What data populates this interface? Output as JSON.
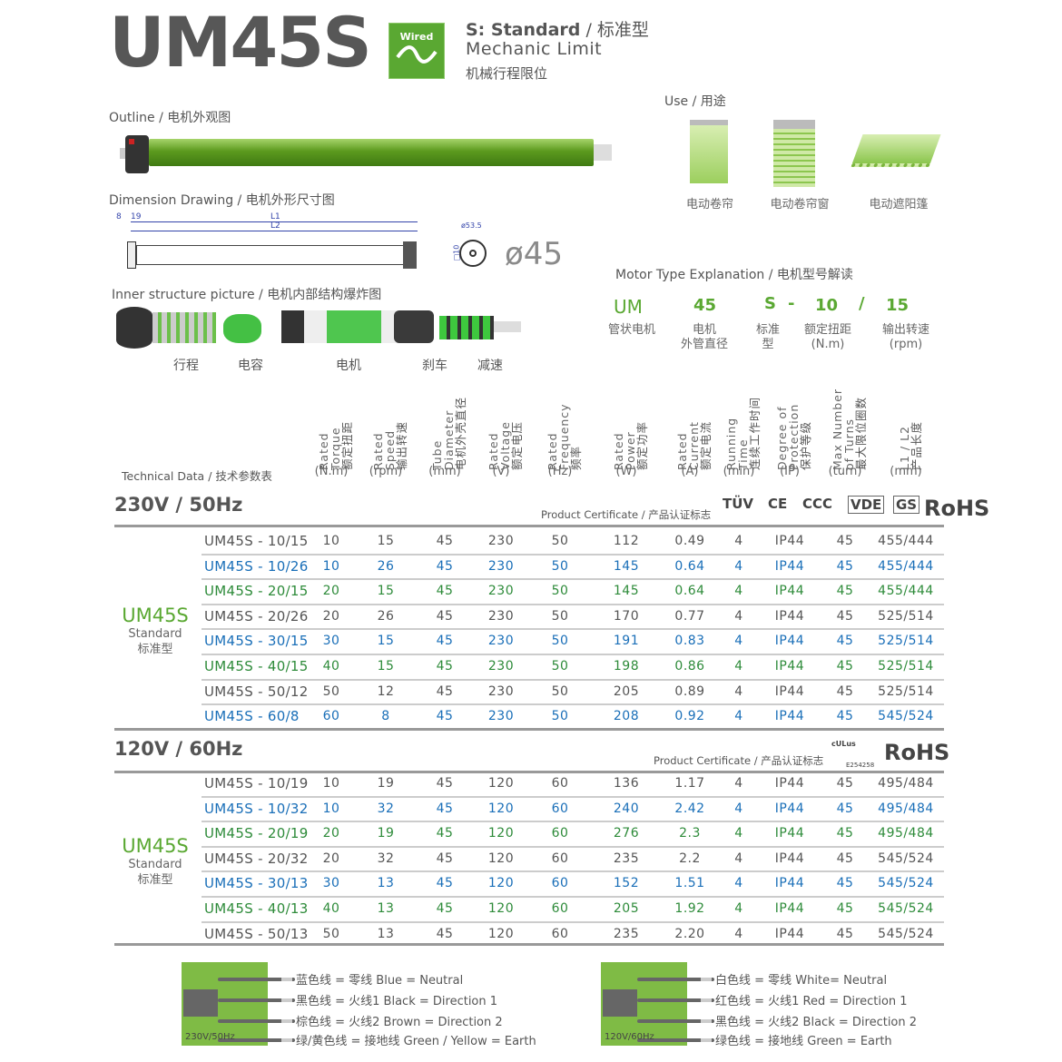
{
  "header": {
    "title": "UM45S",
    "badge": "Wired",
    "badge_icon": "ac-wave-icon",
    "standard": "S: Standard",
    "standard_cn": "/ 标准型",
    "limit": "Mechanic Limit",
    "limit_cn": "机械行程限位"
  },
  "outline": {
    "label": "Outline / 电机外观图"
  },
  "use": {
    "label": "Use / 用途",
    "items": [
      "电动卷帘",
      "电动卷帘窗",
      "电动遮阳篷"
    ]
  },
  "dimension": {
    "label": "Dimension Drawing / 电机外形尺寸图",
    "dims": [
      "8",
      "19",
      "L1",
      "L2",
      "ø53.5",
      "□10"
    ],
    "diameter": "ø45"
  },
  "inner": {
    "label": "Inner structure picture / 电机内部结构爆炸图",
    "parts": [
      "行程",
      "电容",
      "电机",
      "刹车",
      "减速"
    ]
  },
  "motor_type": {
    "label": "Motor Type Explanation / 电机型号解读",
    "codes": [
      "UM",
      "45",
      "S",
      "-",
      "10",
      "/",
      "15"
    ],
    "meanings": [
      "管状电机",
      "电机\n外管直径",
      "标准\n型",
      "额定扭距\n(N.m)",
      "输出转速\n(rpm)"
    ]
  },
  "tech": {
    "label": "Technical Data / 技术参数表",
    "columns": [
      {
        "lines": [
          "Rated",
          "Torque",
          "额定扭距"
        ],
        "unit": "(N.m)"
      },
      {
        "lines": [
          "Rated",
          "Speed",
          "输出转速"
        ],
        "unit": "(rpm)"
      },
      {
        "lines": [
          "Tube",
          "Diameter",
          "电机外壳直径"
        ],
        "unit": "(mm)"
      },
      {
        "lines": [
          "Rated",
          "Voltage",
          "额定电压"
        ],
        "unit": "(V)"
      },
      {
        "lines": [
          "Rated",
          "Frequency",
          "频率"
        ],
        "unit": "(Hz)"
      },
      {
        "lines": [
          "Rated",
          "Power",
          "额定功率"
        ],
        "unit": "(W)"
      },
      {
        "lines": [
          "Rated",
          "Current",
          "额定电流"
        ],
        "unit": "(A)"
      },
      {
        "lines": [
          "Running",
          "Time",
          "连续工作时间"
        ],
        "unit": "(min)"
      },
      {
        "lines": [
          "Degree of",
          "Protection",
          "保护等级"
        ],
        "unit": "(IP)"
      },
      {
        "lines": [
          "Max Number",
          "of Turns",
          "最大限位圈数"
        ],
        "unit": "(turn)"
      },
      {
        "lines": [
          "L1 / L2",
          "产品长度"
        ],
        "unit": "(mm)"
      }
    ]
  },
  "colors": {
    "gray": "#555555",
    "blue": "#1a6fb8",
    "green": "#2e8b3a",
    "brand_green": "#5aa832"
  },
  "groups": [
    {
      "title": "230V / 50Hz",
      "cert_label": "Product Certificate / 产品认证标志",
      "certs": [
        "TÜV",
        "CE",
        "CCC",
        "VDE",
        "GS",
        "RoHS"
      ],
      "series": "UM45S",
      "series_en": "Standard",
      "series_cn": "标准型",
      "rows": [
        {
          "model": "UM45S - 10/15",
          "color": "gray",
          "v": [
            "10",
            "15",
            "45",
            "230",
            "50",
            "112",
            "0.49",
            "4",
            "IP44",
            "45",
            "455/444"
          ]
        },
        {
          "model": "UM45S - 10/26",
          "color": "blue",
          "v": [
            "10",
            "26",
            "45",
            "230",
            "50",
            "145",
            "0.64",
            "4",
            "IP44",
            "45",
            "455/444"
          ]
        },
        {
          "model": "UM45S - 20/15",
          "color": "green",
          "v": [
            "20",
            "15",
            "45",
            "230",
            "50",
            "145",
            "0.64",
            "4",
            "IP44",
            "45",
            "455/444"
          ]
        },
        {
          "model": "UM45S - 20/26",
          "color": "gray",
          "v": [
            "20",
            "26",
            "45",
            "230",
            "50",
            "170",
            "0.77",
            "4",
            "IP44",
            "45",
            "525/514"
          ]
        },
        {
          "model": "UM45S - 30/15",
          "color": "blue",
          "v": [
            "30",
            "15",
            "45",
            "230",
            "50",
            "191",
            "0.83",
            "4",
            "IP44",
            "45",
            "525/514"
          ]
        },
        {
          "model": "UM45S - 40/15",
          "color": "green",
          "v": [
            "40",
            "15",
            "45",
            "230",
            "50",
            "198",
            "0.86",
            "4",
            "IP44",
            "45",
            "525/514"
          ]
        },
        {
          "model": "UM45S - 50/12",
          "color": "gray",
          "v": [
            "50",
            "12",
            "45",
            "230",
            "50",
            "205",
            "0.89",
            "4",
            "IP44",
            "45",
            "525/514"
          ]
        },
        {
          "model": "UM45S - 60/8",
          "color": "blue",
          "v": [
            "60",
            "8",
            "45",
            "230",
            "50",
            "208",
            "0.92",
            "4",
            "IP44",
            "45",
            "545/524"
          ]
        }
      ]
    },
    {
      "title": "120V / 60Hz",
      "cert_label": "Product Certificate / 产品认证标志",
      "certs": [
        "cULus",
        "E254258",
        "RoHS"
      ],
      "series": "UM45S",
      "series_en": "Standard",
      "series_cn": "标准型",
      "rows": [
        {
          "model": "UM45S - 10/19",
          "color": "gray",
          "v": [
            "10",
            "19",
            "45",
            "120",
            "60",
            "136",
            "1.17",
            "4",
            "IP44",
            "45",
            "495/484"
          ]
        },
        {
          "model": "UM45S - 10/32",
          "color": "blue",
          "v": [
            "10",
            "32",
            "45",
            "120",
            "60",
            "240",
            "2.42",
            "4",
            "IP44",
            "45",
            "495/484"
          ]
        },
        {
          "model": "UM45S - 20/19",
          "color": "green",
          "v": [
            "20",
            "19",
            "45",
            "120",
            "60",
            "276",
            "2.3",
            "4",
            "IP44",
            "45",
            "495/484"
          ]
        },
        {
          "model": "UM45S - 20/32",
          "color": "gray",
          "v": [
            "20",
            "32",
            "45",
            "120",
            "60",
            "235",
            "2.2",
            "4",
            "IP44",
            "45",
            "545/524"
          ]
        },
        {
          "model": "UM45S - 30/13",
          "color": "blue",
          "v": [
            "30",
            "13",
            "45",
            "120",
            "60",
            "152",
            "1.51",
            "4",
            "IP44",
            "45",
            "545/524"
          ]
        },
        {
          "model": "UM45S - 40/13",
          "color": "green",
          "v": [
            "40",
            "13",
            "45",
            "120",
            "60",
            "205",
            "1.92",
            "4",
            "IP44",
            "45",
            "545/524"
          ]
        },
        {
          "model": "UM45S - 50/13",
          "color": "gray",
          "v": [
            "50",
            "13",
            "45",
            "120",
            "60",
            "235",
            "2.20",
            "4",
            "IP44",
            "45",
            "545/524"
          ]
        }
      ]
    }
  ],
  "wiring": [
    {
      "label": "230V/50Hz",
      "lines": [
        "蓝色线 = 零线  Blue = Neutral",
        "黑色线 = 火线1  Black = Direction 1",
        "棕色线 = 火线2  Brown = Direction 2",
        "绿/黄色线 = 接地线  Green / Yellow = Earth"
      ]
    },
    {
      "label": "120V/60Hz",
      "lines": [
        "白色线 = 零线  White= Neutral",
        "红色线 = 火线1  Red = Direction 1",
        "黑色线 = 火线2  Black = Direction 2",
        "绿色线 = 接地线  Green = Earth"
      ]
    }
  ]
}
